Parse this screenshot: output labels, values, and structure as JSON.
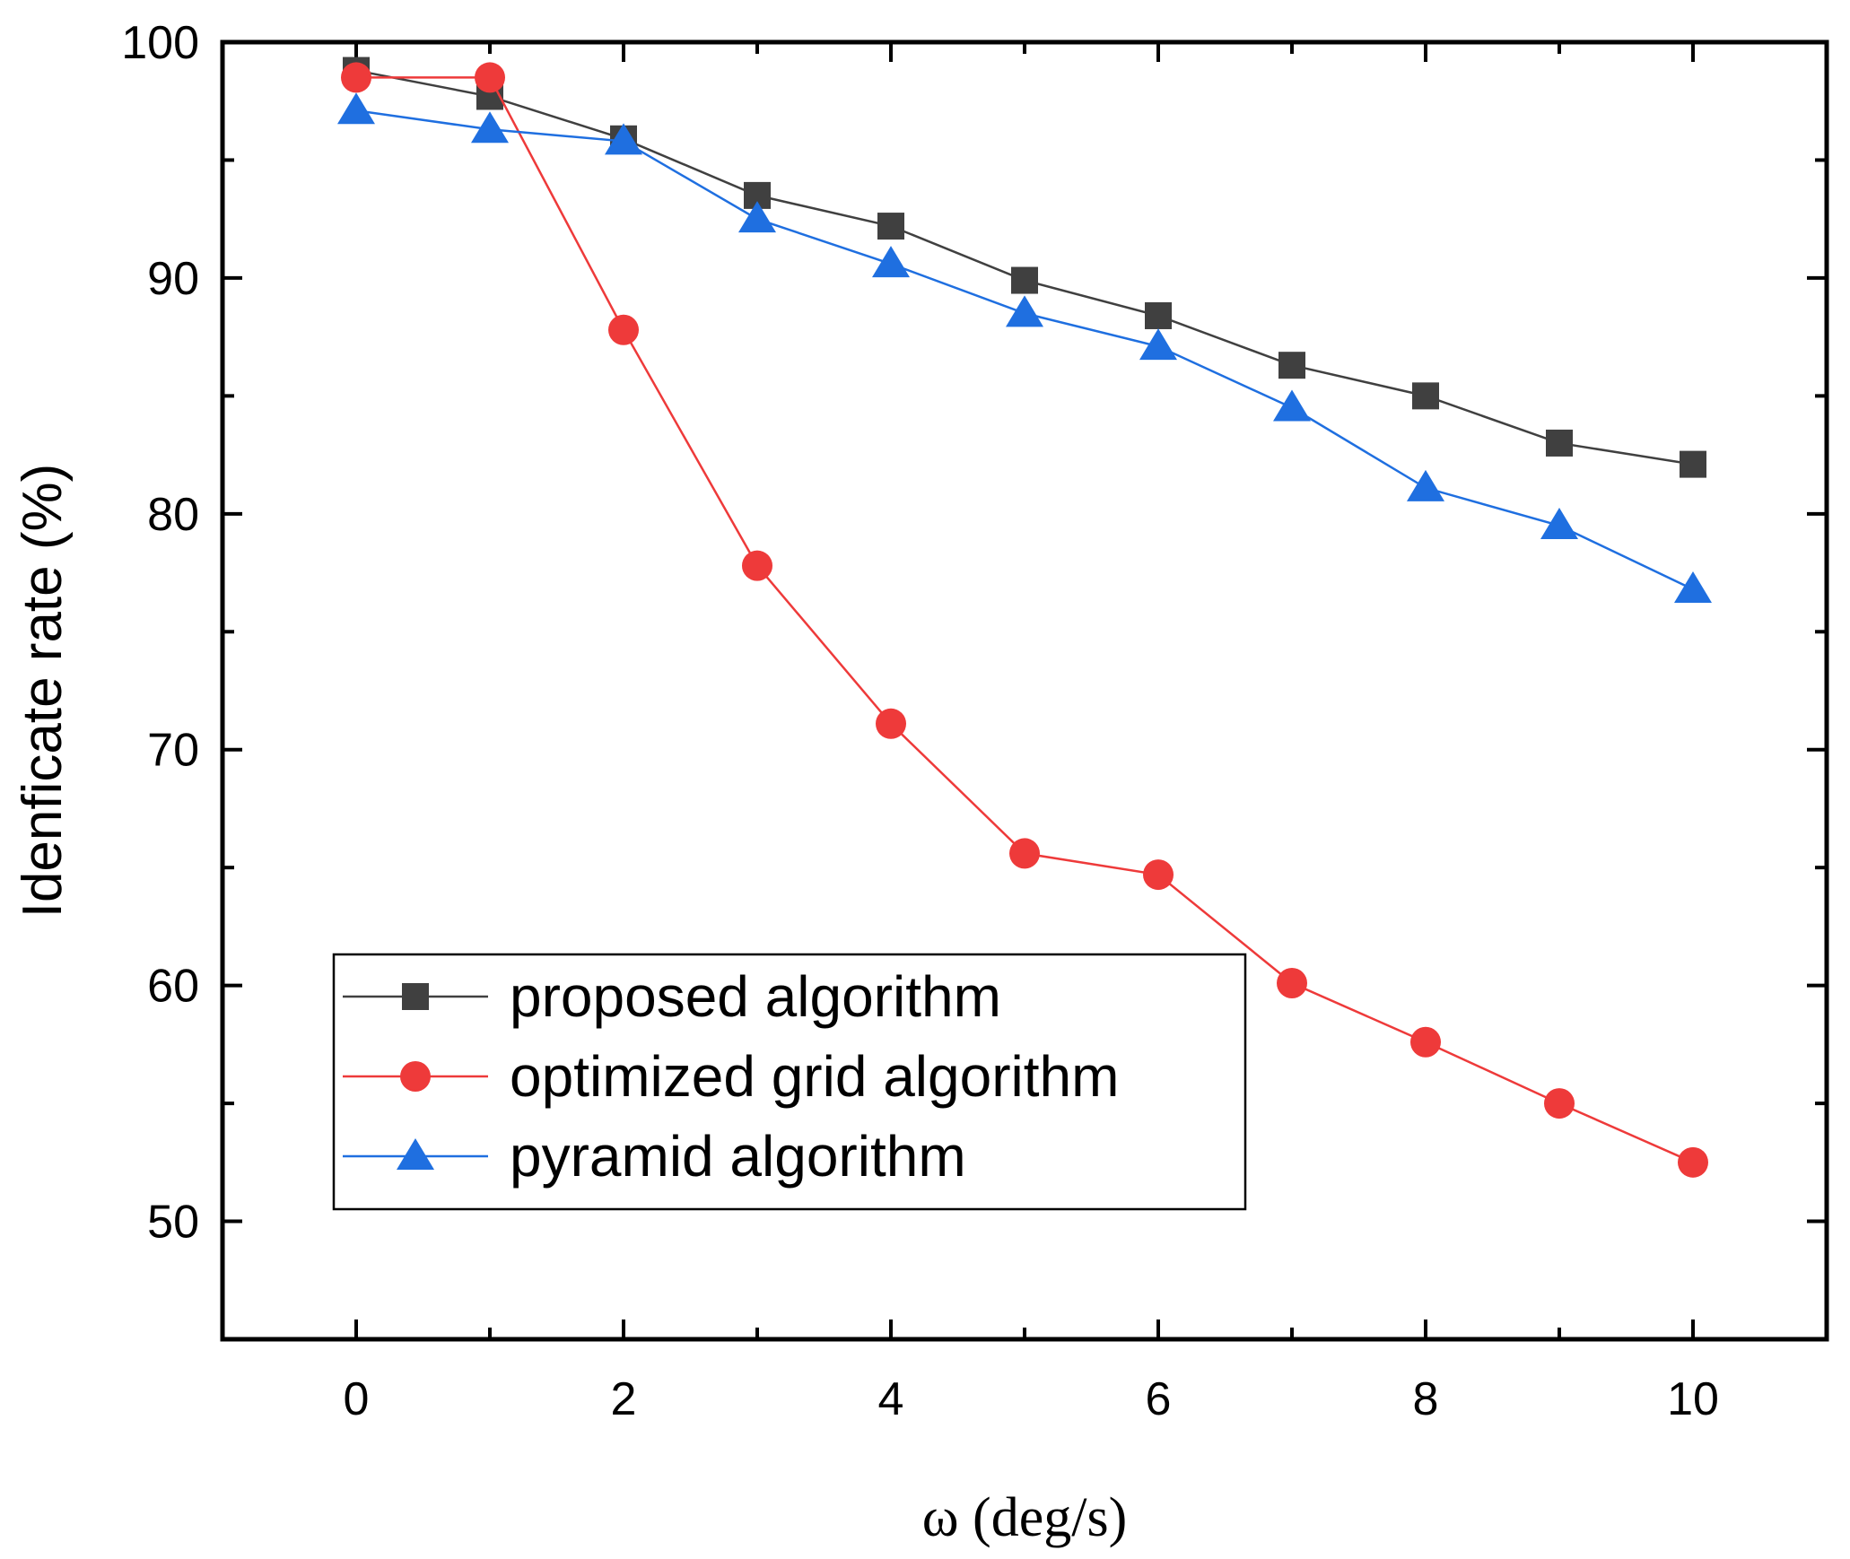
{
  "chart_data": {
    "type": "line",
    "title": "",
    "xlabel": "ω (deg/s)",
    "ylabel": "Idenficate rate (%)",
    "xlim": [
      -1,
      11
    ],
    "ylim": [
      45,
      100
    ],
    "x_ticks": [
      0,
      2,
      4,
      6,
      8,
      10
    ],
    "x_tick_labels": [
      "0",
      "2",
      "4",
      "6",
      "8",
      "10"
    ],
    "y_ticks": [
      50,
      60,
      70,
      80,
      90,
      100
    ],
    "y_tick_labels": [
      "50",
      "60",
      "70",
      "80",
      "90",
      "100"
    ],
    "grid": false,
    "legend_position": "bottom-left",
    "x": [
      0,
      1,
      2,
      3,
      4,
      5,
      6,
      7,
      8,
      9,
      10
    ],
    "series": [
      {
        "name": "proposed algorithm",
        "color": "#404040",
        "marker": "square",
        "values": [
          98.8,
          97.7,
          95.9,
          93.5,
          92.2,
          89.9,
          88.4,
          86.3,
          85.0,
          83.0,
          82.1
        ]
      },
      {
        "name": "optimized grid algorithm",
        "color": "#ee3a3a",
        "marker": "circle",
        "values": [
          98.5,
          98.5,
          87.8,
          77.8,
          71.1,
          65.6,
          64.7,
          60.1,
          57.6,
          55.0,
          52.5
        ]
      },
      {
        "name": "pyramid algorithm",
        "color": "#1f6fe0",
        "marker": "triangle",
        "values": [
          97.1,
          96.3,
          95.8,
          92.5,
          90.6,
          88.5,
          87.1,
          84.5,
          81.1,
          79.5,
          76.8
        ]
      }
    ]
  }
}
